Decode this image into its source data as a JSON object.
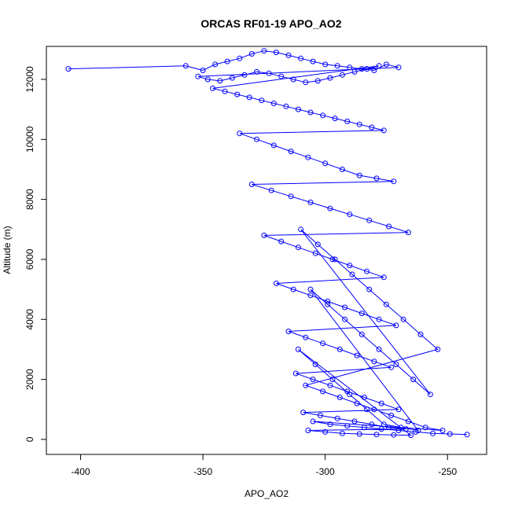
{
  "chart_data": {
    "type": "scatter",
    "title": "ORCAS RF01-19 APO_AO2",
    "xlabel": "APO_AO2",
    "ylabel": "Altitude (m)",
    "xlim": [
      -414,
      -234
    ],
    "ylim": [
      -500,
      13100
    ],
    "x_ticks": [
      -400,
      -350,
      -300,
      -250
    ],
    "y_ticks": [
      0,
      2000,
      4000,
      6000,
      8000,
      10000,
      12000
    ],
    "grid": false,
    "legend": "none",
    "style": "points-connected-by-lines",
    "color": "#0000ff",
    "series": [
      {
        "x": [
          -405,
          -357,
          -350,
          -345,
          -340,
          -335,
          -330,
          -325,
          -320,
          -315,
          -310,
          -305,
          -300,
          -295,
          -290,
          -285,
          -280,
          -275,
          -270,
          -352,
          -348,
          -343,
          -338,
          -333,
          -328,
          -323,
          -318,
          -313,
          -308,
          -303,
          -298,
          -293,
          -288,
          -283,
          -278,
          -346,
          -341,
          -336,
          -331,
          -326,
          -321,
          -316,
          -311,
          -306,
          -301,
          -296,
          -291,
          -286,
          -281,
          -276,
          -335,
          -328,
          -321,
          -314,
          -307,
          -300,
          -293,
          -286,
          -279,
          -272,
          -330,
          -322,
          -314,
          -306,
          -298,
          -290,
          -282,
          -274,
          -266,
          -325,
          -318,
          -311,
          -304,
          -297,
          -290,
          -283,
          -276,
          -320,
          -313,
          -306,
          -299,
          -292,
          -285,
          -278,
          -271,
          -315,
          -308,
          -301,
          -294,
          -287,
          -280,
          -273,
          -312,
          -305,
          -298,
          -291,
          -284,
          -277,
          -270,
          -309,
          -302,
          -295,
          -288,
          -281,
          -274,
          -267,
          -307,
          -300,
          -293,
          -286,
          -279,
          -272,
          -265,
          -311,
          -304,
          -297,
          -290,
          -283,
          -276,
          -269,
          -262,
          -306,
          -299,
          -292,
          -285,
          -278,
          -271,
          -264,
          -257,
          -310,
          -303,
          -296,
          -289,
          -282,
          -275,
          -268,
          -261,
          -254,
          -308,
          -301,
          -294,
          -287,
          -280,
          -273,
          -266,
          -259,
          -252,
          -305,
          -298,
          -291,
          -284,
          -277,
          -270,
          -263,
          -256,
          -249,
          -242
        ],
        "y": [
          12350,
          12450,
          12300,
          12500,
          12600,
          12700,
          12850,
          12950,
          12900,
          12800,
          12700,
          12600,
          12500,
          12450,
          12400,
          12350,
          12300,
          12500,
          12400,
          12100,
          12000,
          11950,
          12050,
          12150,
          12250,
          12200,
          12100,
          12000,
          11900,
          11950,
          12050,
          12150,
          12250,
          12350,
          12450,
          11700,
          11600,
          11500,
          11400,
          11300,
          11200,
          11100,
          11000,
          10900,
          10800,
          10700,
          10600,
          10500,
          10400,
          10300,
          10200,
          10000,
          9800,
          9600,
          9400,
          9200,
          9000,
          8800,
          8700,
          8600,
          8500,
          8300,
          8100,
          7900,
          7700,
          7500,
          7300,
          7100,
          6900,
          6800,
          6600,
          6400,
          6200,
          6000,
          5800,
          5600,
          5400,
          5200,
          5000,
          4800,
          4600,
          4400,
          4200,
          4000,
          3800,
          3600,
          3400,
          3200,
          3000,
          2800,
          2600,
          2400,
          2200,
          2000,
          1800,
          1600,
          1400,
          1200,
          1000,
          900,
          800,
          700,
          600,
          500,
          400,
          350,
          300,
          250,
          200,
          180,
          160,
          150,
          140,
          3000,
          2500,
          2000,
          1500,
          1000,
          500,
          400,
          300,
          5000,
          4500,
          4000,
          3500,
          3000,
          2500,
          2000,
          1500,
          7000,
          6500,
          6000,
          5500,
          5000,
          4500,
          4000,
          3500,
          3000,
          1800,
          1600,
          1400,
          1200,
          1000,
          800,
          600,
          400,
          300,
          600,
          500,
          450,
          400,
          350,
          300,
          250,
          200,
          180,
          160
        ]
      }
    ]
  }
}
